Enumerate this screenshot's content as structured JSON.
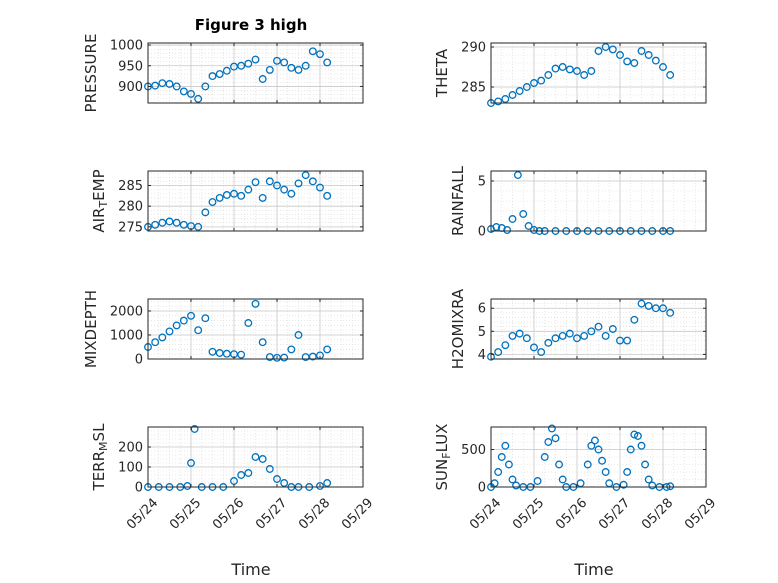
{
  "figure": {
    "title": "Figure 3 high",
    "marker_color": "#0072BD",
    "grid": true,
    "minor_grid": true
  },
  "chart_data": [
    {
      "type": "scatter",
      "id": "pressure",
      "ylabel_parts": [
        {
          "t": "PRESSURE"
        }
      ],
      "ylim": [
        860,
        1005
      ],
      "yticks": [
        900,
        950,
        1000
      ],
      "show_xticks": false,
      "x": [
        "05/24 00:00",
        "05/24 04:00",
        "05/24 08:00",
        "05/24 12:00",
        "05/24 16:00",
        "05/24 20:00",
        "05/25 00:00",
        "05/25 04:00",
        "05/25 08:00",
        "05/25 12:00",
        "05/25 16:00",
        "05/25 20:00",
        "05/26 00:00",
        "05/26 04:00",
        "05/26 08:00",
        "05/26 12:00",
        "05/26 16:00",
        "05/26 20:00",
        "05/27 00:00",
        "05/27 04:00",
        "05/27 08:00",
        "05/27 12:00",
        "05/27 16:00",
        "05/27 20:00",
        "05/28 00:00",
        "05/28 04:00"
      ],
      "y": [
        900,
        902,
        908,
        906,
        900,
        888,
        882,
        870,
        900,
        925,
        930,
        938,
        948,
        950,
        955,
        965,
        918,
        940,
        962,
        958,
        945,
        940,
        950,
        985,
        978,
        958
      ]
    },
    {
      "type": "scatter",
      "id": "theta",
      "ylabel_parts": [
        {
          "t": "THETA"
        }
      ],
      "ylim": [
        283,
        290.5
      ],
      "yticks": [
        285,
        290
      ],
      "show_xticks": false,
      "x": [
        "05/24 00:00",
        "05/24 04:00",
        "05/24 08:00",
        "05/24 12:00",
        "05/24 16:00",
        "05/24 20:00",
        "05/25 00:00",
        "05/25 04:00",
        "05/25 08:00",
        "05/25 12:00",
        "05/25 16:00",
        "05/25 20:00",
        "05/26 00:00",
        "05/26 04:00",
        "05/26 08:00",
        "05/26 12:00",
        "05/26 16:00",
        "05/26 20:00",
        "05/27 00:00",
        "05/27 04:00",
        "05/27 08:00",
        "05/27 12:00",
        "05/27 16:00",
        "05/27 20:00",
        "05/28 00:00",
        "05/28 04:00"
      ],
      "y": [
        283,
        283.2,
        283.5,
        284,
        284.5,
        285,
        285.5,
        285.8,
        286.5,
        287.3,
        287.5,
        287.2,
        287,
        286.5,
        287,
        289.5,
        290,
        289.7,
        289,
        288.2,
        288,
        289.5,
        289,
        288.3,
        287.5,
        286.5
      ]
    },
    {
      "type": "scatter",
      "id": "air_temp",
      "ylabel_parts": [
        {
          "t": "AIR"
        },
        {
          "t": "T",
          "sub": true
        },
        {
          "t": "EMP"
        }
      ],
      "ylim": [
        274,
        288.5
      ],
      "yticks": [
        275,
        280,
        285
      ],
      "show_xticks": false,
      "x": [
        "05/24 00:00",
        "05/24 04:00",
        "05/24 08:00",
        "05/24 12:00",
        "05/24 16:00",
        "05/24 20:00",
        "05/25 00:00",
        "05/25 04:00",
        "05/25 08:00",
        "05/25 12:00",
        "05/25 16:00",
        "05/25 20:00",
        "05/26 00:00",
        "05/26 04:00",
        "05/26 08:00",
        "05/26 12:00",
        "05/26 16:00",
        "05/26 20:00",
        "05/27 00:00",
        "05/27 04:00",
        "05/27 08:00",
        "05/27 12:00",
        "05/27 16:00",
        "05/27 20:00",
        "05/28 00:00",
        "05/28 04:00"
      ],
      "y": [
        275,
        275.5,
        276,
        276.3,
        276,
        275.5,
        275.2,
        275,
        278.5,
        281,
        282,
        282.7,
        283,
        282.5,
        284,
        285.8,
        282,
        286,
        285,
        284,
        283,
        285.5,
        287.5,
        286,
        284.5,
        282.5
      ]
    },
    {
      "type": "scatter",
      "id": "rainfall",
      "ylabel_parts": [
        {
          "t": "RAINFALL"
        }
      ],
      "ylim": [
        0,
        6
      ],
      "yticks": [
        0,
        5
      ],
      "show_xticks": false,
      "x": [
        "05/24 00:00",
        "05/24 03:00",
        "05/24 06:00",
        "05/24 09:00",
        "05/24 12:00",
        "05/24 15:00",
        "05/24 18:00",
        "05/24 21:00",
        "05/25 00:00",
        "05/25 03:00",
        "05/25 06:00",
        "05/25 12:00",
        "05/25 18:00",
        "05/26 00:00",
        "05/26 06:00",
        "05/26 12:00",
        "05/26 18:00",
        "05/27 00:00",
        "05/27 06:00",
        "05/27 12:00",
        "05/27 18:00",
        "05/28 00:00",
        "05/28 04:00"
      ],
      "y": [
        0.2,
        0.4,
        0.3,
        0.1,
        1.2,
        5.6,
        1.7,
        0.5,
        0.1,
        0,
        0,
        0,
        0,
        0,
        0,
        0,
        0,
        0,
        0,
        0,
        0,
        0,
        0
      ]
    },
    {
      "type": "scatter",
      "id": "mixdepth",
      "ylabel_parts": [
        {
          "t": "MIXDEPTH"
        }
      ],
      "ylim": [
        0,
        2500
      ],
      "yticks": [
        0,
        1000,
        2000
      ],
      "show_xticks": false,
      "x": [
        "05/24 00:00",
        "05/24 04:00",
        "05/24 08:00",
        "05/24 12:00",
        "05/24 16:00",
        "05/24 20:00",
        "05/25 00:00",
        "05/25 04:00",
        "05/25 08:00",
        "05/25 12:00",
        "05/25 16:00",
        "05/25 20:00",
        "05/26 00:00",
        "05/26 04:00",
        "05/26 08:00",
        "05/26 12:00",
        "05/26 16:00",
        "05/26 20:00",
        "05/27 00:00",
        "05/27 04:00",
        "05/27 08:00",
        "05/27 12:00",
        "05/27 16:00",
        "05/27 20:00",
        "05/28 00:00",
        "05/28 04:00"
      ],
      "y": [
        500,
        700,
        900,
        1150,
        1400,
        1600,
        1800,
        1200,
        1700,
        300,
        250,
        220,
        200,
        180,
        1500,
        2300,
        700,
        80,
        50,
        60,
        400,
        1000,
        80,
        100,
        150,
        400
      ]
    },
    {
      "type": "scatter",
      "id": "h2omixra",
      "ylabel_parts": [
        {
          "t": "H2OMIXRA"
        }
      ],
      "ylim": [
        3.8,
        6.4
      ],
      "yticks": [
        4,
        5,
        6
      ],
      "show_xticks": false,
      "x": [
        "05/24 00:00",
        "05/24 04:00",
        "05/24 08:00",
        "05/24 12:00",
        "05/24 16:00",
        "05/24 20:00",
        "05/25 00:00",
        "05/25 04:00",
        "05/25 08:00",
        "05/25 12:00",
        "05/25 16:00",
        "05/25 20:00",
        "05/26 00:00",
        "05/26 04:00",
        "05/26 08:00",
        "05/26 12:00",
        "05/26 16:00",
        "05/26 20:00",
        "05/27 00:00",
        "05/27 04:00",
        "05/27 08:00",
        "05/27 12:00",
        "05/27 16:00",
        "05/27 20:00",
        "05/28 00:00",
        "05/28 04:00"
      ],
      "y": [
        3.9,
        4.1,
        4.4,
        4.8,
        4.9,
        4.7,
        4.3,
        4.1,
        4.5,
        4.7,
        4.8,
        4.9,
        4.7,
        4.8,
        5.0,
        5.2,
        4.8,
        5.1,
        4.6,
        4.6,
        5.5,
        6.2,
        6.1,
        6.0,
        6.0,
        5.8
      ]
    },
    {
      "type": "scatter",
      "id": "terr_msl",
      "ylabel_parts": [
        {
          "t": "TERR"
        },
        {
          "t": "M",
          "sub": true
        },
        {
          "t": "SL"
        }
      ],
      "ylim": [
        0,
        300
      ],
      "yticks": [
        0,
        100,
        200
      ],
      "show_xticks": true,
      "x": [
        "05/24 00:00",
        "05/24 06:00",
        "05/24 12:00",
        "05/24 18:00",
        "05/24 22:00",
        "05/25 00:00",
        "05/25 02:00",
        "05/25 06:00",
        "05/25 12:00",
        "05/25 18:00",
        "05/26 00:00",
        "05/26 04:00",
        "05/26 08:00",
        "05/26 12:00",
        "05/26 16:00",
        "05/26 20:00",
        "05/27 00:00",
        "05/27 04:00",
        "05/27 08:00",
        "05/27 12:00",
        "05/27 18:00",
        "05/28 00:00",
        "05/28 04:00"
      ],
      "y": [
        0,
        0,
        0,
        0,
        5,
        120,
        290,
        0,
        0,
        0,
        30,
        60,
        70,
        150,
        140,
        90,
        40,
        20,
        0,
        0,
        0,
        5,
        20
      ]
    },
    {
      "type": "scatter",
      "id": "sun_flux",
      "ylabel_parts": [
        {
          "t": "SUN"
        },
        {
          "t": "F",
          "sub": true
        },
        {
          "t": "LUX"
        }
      ],
      "ylim": [
        0,
        800
      ],
      "yticks": [
        0,
        500
      ],
      "show_xticks": true,
      "x": [
        "05/24 00:00",
        "05/24 02:00",
        "05/24 04:00",
        "05/24 06:00",
        "05/24 08:00",
        "05/24 10:00",
        "05/24 12:00",
        "05/24 14:00",
        "05/24 18:00",
        "05/24 22:00",
        "05/25 02:00",
        "05/25 06:00",
        "05/25 08:00",
        "05/25 10:00",
        "05/25 12:00",
        "05/25 14:00",
        "05/25 16:00",
        "05/25 18:00",
        "05/25 22:00",
        "05/26 02:00",
        "05/26 06:00",
        "05/26 08:00",
        "05/26 10:00",
        "05/26 12:00",
        "05/26 14:00",
        "05/26 16:00",
        "05/26 18:00",
        "05/26 22:00",
        "05/27 02:00",
        "05/27 04:00",
        "05/27 06:00",
        "05/27 08:00",
        "05/27 10:00",
        "05/27 12:00",
        "05/27 14:00",
        "05/27 16:00",
        "05/27 18:00",
        "05/27 22:00",
        "05/28 02:00",
        "05/28 04:00"
      ],
      "y": [
        0,
        50,
        200,
        400,
        550,
        300,
        100,
        20,
        0,
        0,
        80,
        400,
        600,
        780,
        650,
        300,
        100,
        0,
        0,
        50,
        300,
        550,
        620,
        500,
        350,
        200,
        50,
        0,
        30,
        200,
        500,
        700,
        680,
        550,
        300,
        100,
        20,
        0,
        0,
        10
      ]
    }
  ],
  "axes_common": {
    "xlim": [
      "05/24 00:00",
      "05/29 00:00"
    ],
    "xticks": [
      "05/24",
      "05/25",
      "05/26",
      "05/27",
      "05/28",
      "05/29"
    ],
    "xlabel": "Time"
  }
}
